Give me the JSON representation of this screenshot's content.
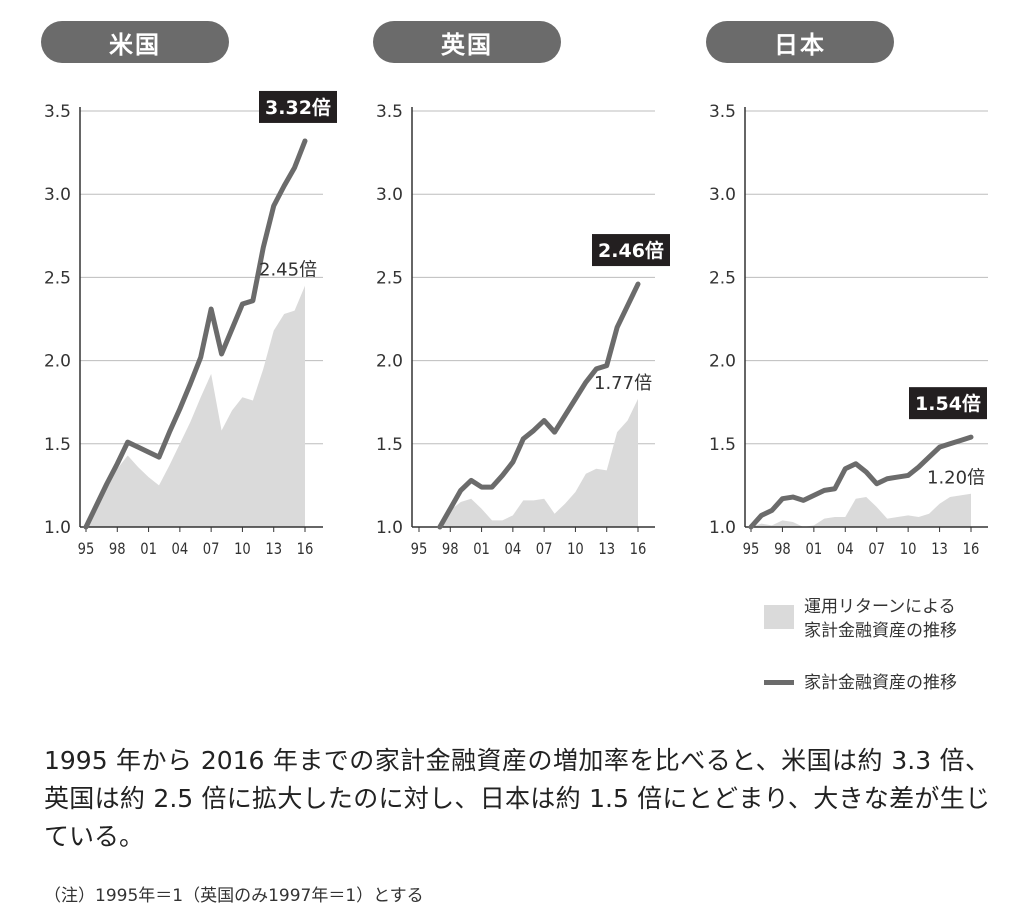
{
  "chart_data": [
    {
      "type": "area",
      "title": "米国",
      "x_ticks": [
        "95",
        "98",
        "01",
        "04",
        "07",
        "10",
        "13",
        "16"
      ],
      "y_ticks": [
        "1.0",
        "1.5",
        "2.0",
        "2.5",
        "3.0",
        "3.5"
      ],
      "ylim": [
        1.0,
        3.5
      ],
      "xlim": [
        1995,
        2016
      ],
      "series": [
        {
          "kind": "area",
          "x": [
            1995,
            1996,
            1997,
            1998,
            1999,
            2000,
            2001,
            2002,
            2003,
            2004,
            2005,
            2006,
            2007,
            2008,
            2009,
            2010,
            2011,
            2012,
            2013,
            2014,
            2015,
            2016
          ],
          "values": [
            1.0,
            1.13,
            1.25,
            1.35,
            1.43,
            1.36,
            1.3,
            1.25,
            1.37,
            1.5,
            1.63,
            1.78,
            1.92,
            1.58,
            1.7,
            1.78,
            1.76,
            1.95,
            2.18,
            2.28,
            2.3,
            2.45
          ],
          "end_label": "2.45倍"
        },
        {
          "kind": "line",
          "x": [
            1995,
            1996,
            1997,
            1998,
            1999,
            2000,
            2001,
            2002,
            2003,
            2004,
            2005,
            2006,
            2007,
            2008,
            2009,
            2010,
            2011,
            2012,
            2013,
            2014,
            2015,
            2016
          ],
          "values": [
            1.0,
            1.13,
            1.26,
            1.38,
            1.51,
            1.48,
            1.45,
            1.42,
            1.57,
            1.71,
            1.86,
            2.02,
            2.31,
            2.04,
            2.19,
            2.34,
            2.36,
            2.68,
            2.93,
            3.05,
            3.16,
            3.32
          ],
          "end_label": "3.32倍"
        }
      ]
    },
    {
      "type": "area",
      "title": "英国",
      "x_ticks": [
        "95",
        "98",
        "01",
        "04",
        "07",
        "10",
        "13",
        "16"
      ],
      "y_ticks": [
        "1.0",
        "1.5",
        "2.0",
        "2.5",
        "3.0",
        "3.5"
      ],
      "ylim": [
        1.0,
        3.5
      ],
      "xlim": [
        1995,
        2016
      ],
      "series": [
        {
          "kind": "area",
          "x": [
            1997,
            1998,
            1999,
            2000,
            2001,
            2002,
            2003,
            2004,
            2005,
            2006,
            2007,
            2008,
            2009,
            2010,
            2011,
            2012,
            2013,
            2014,
            2015,
            2016
          ],
          "values": [
            1.0,
            1.1,
            1.15,
            1.17,
            1.11,
            1.04,
            1.04,
            1.07,
            1.16,
            1.16,
            1.17,
            1.08,
            1.14,
            1.21,
            1.32,
            1.35,
            1.34,
            1.57,
            1.64,
            1.77
          ],
          "end_label": "1.77倍"
        },
        {
          "kind": "line",
          "x": [
            1997,
            1998,
            1999,
            2000,
            2001,
            2002,
            2003,
            2004,
            2005,
            2006,
            2007,
            2008,
            2009,
            2010,
            2011,
            2012,
            2013,
            2014,
            2015,
            2016
          ],
          "values": [
            1.0,
            1.11,
            1.22,
            1.28,
            1.24,
            1.24,
            1.31,
            1.39,
            1.53,
            1.58,
            1.64,
            1.57,
            1.67,
            1.77,
            1.87,
            1.95,
            1.97,
            2.2,
            2.33,
            2.46
          ],
          "end_label": "2.46倍"
        }
      ]
    },
    {
      "type": "area",
      "title": "日本",
      "x_ticks": [
        "95",
        "98",
        "01",
        "04",
        "07",
        "10",
        "13",
        "16"
      ],
      "y_ticks": [
        "1.0",
        "1.5",
        "2.0",
        "2.5",
        "3.0",
        "3.5"
      ],
      "ylim": [
        1.0,
        3.5
      ],
      "xlim": [
        1995,
        2016
      ],
      "series": [
        {
          "kind": "area",
          "x": [
            1995,
            1996,
            1997,
            1998,
            1999,
            2000,
            2001,
            2002,
            2003,
            2004,
            2005,
            2006,
            2007,
            2008,
            2009,
            2010,
            2011,
            2012,
            2013,
            2014,
            2015,
            2016
          ],
          "values": [
            1.0,
            1.02,
            1.01,
            1.04,
            1.03,
            1.0,
            1.01,
            1.05,
            1.06,
            1.06,
            1.17,
            1.18,
            1.12,
            1.05,
            1.06,
            1.07,
            1.06,
            1.08,
            1.14,
            1.18,
            1.19,
            1.2
          ],
          "end_label": "1.20倍"
        },
        {
          "kind": "line",
          "x": [
            1995,
            1996,
            1997,
            1998,
            1999,
            2000,
            2001,
            2002,
            2003,
            2004,
            2005,
            2006,
            2007,
            2008,
            2009,
            2010,
            2011,
            2012,
            2013,
            2014,
            2015,
            2016
          ],
          "values": [
            1.0,
            1.07,
            1.1,
            1.17,
            1.18,
            1.16,
            1.19,
            1.22,
            1.23,
            1.35,
            1.38,
            1.33,
            1.26,
            1.29,
            1.3,
            1.31,
            1.36,
            1.42,
            1.48,
            1.5,
            1.52,
            1.54
          ],
          "end_label": "1.54倍"
        }
      ]
    }
  ],
  "legend": {
    "area_label_line1": "運用リターンによる",
    "area_label_line2": "家計金融資産の推移",
    "line_label": "家計金融資産の推移"
  },
  "caption": "1995 年から 2016 年までの家計金融資産の増加率を比べると、米国は約 3.3 倍、英国は約 2.5 倍に拡大したのに対し、日本は約 1.5 倍にとどまり、大きな差が生じている。",
  "note": "（注）1995年＝1（英国のみ1997年＝1）とする",
  "colors": {
    "pill": "#6b6b6b",
    "line": "#6b6b6b",
    "area": "#dadada",
    "badge": "#231f20",
    "grid": "#bdbdbd"
  }
}
